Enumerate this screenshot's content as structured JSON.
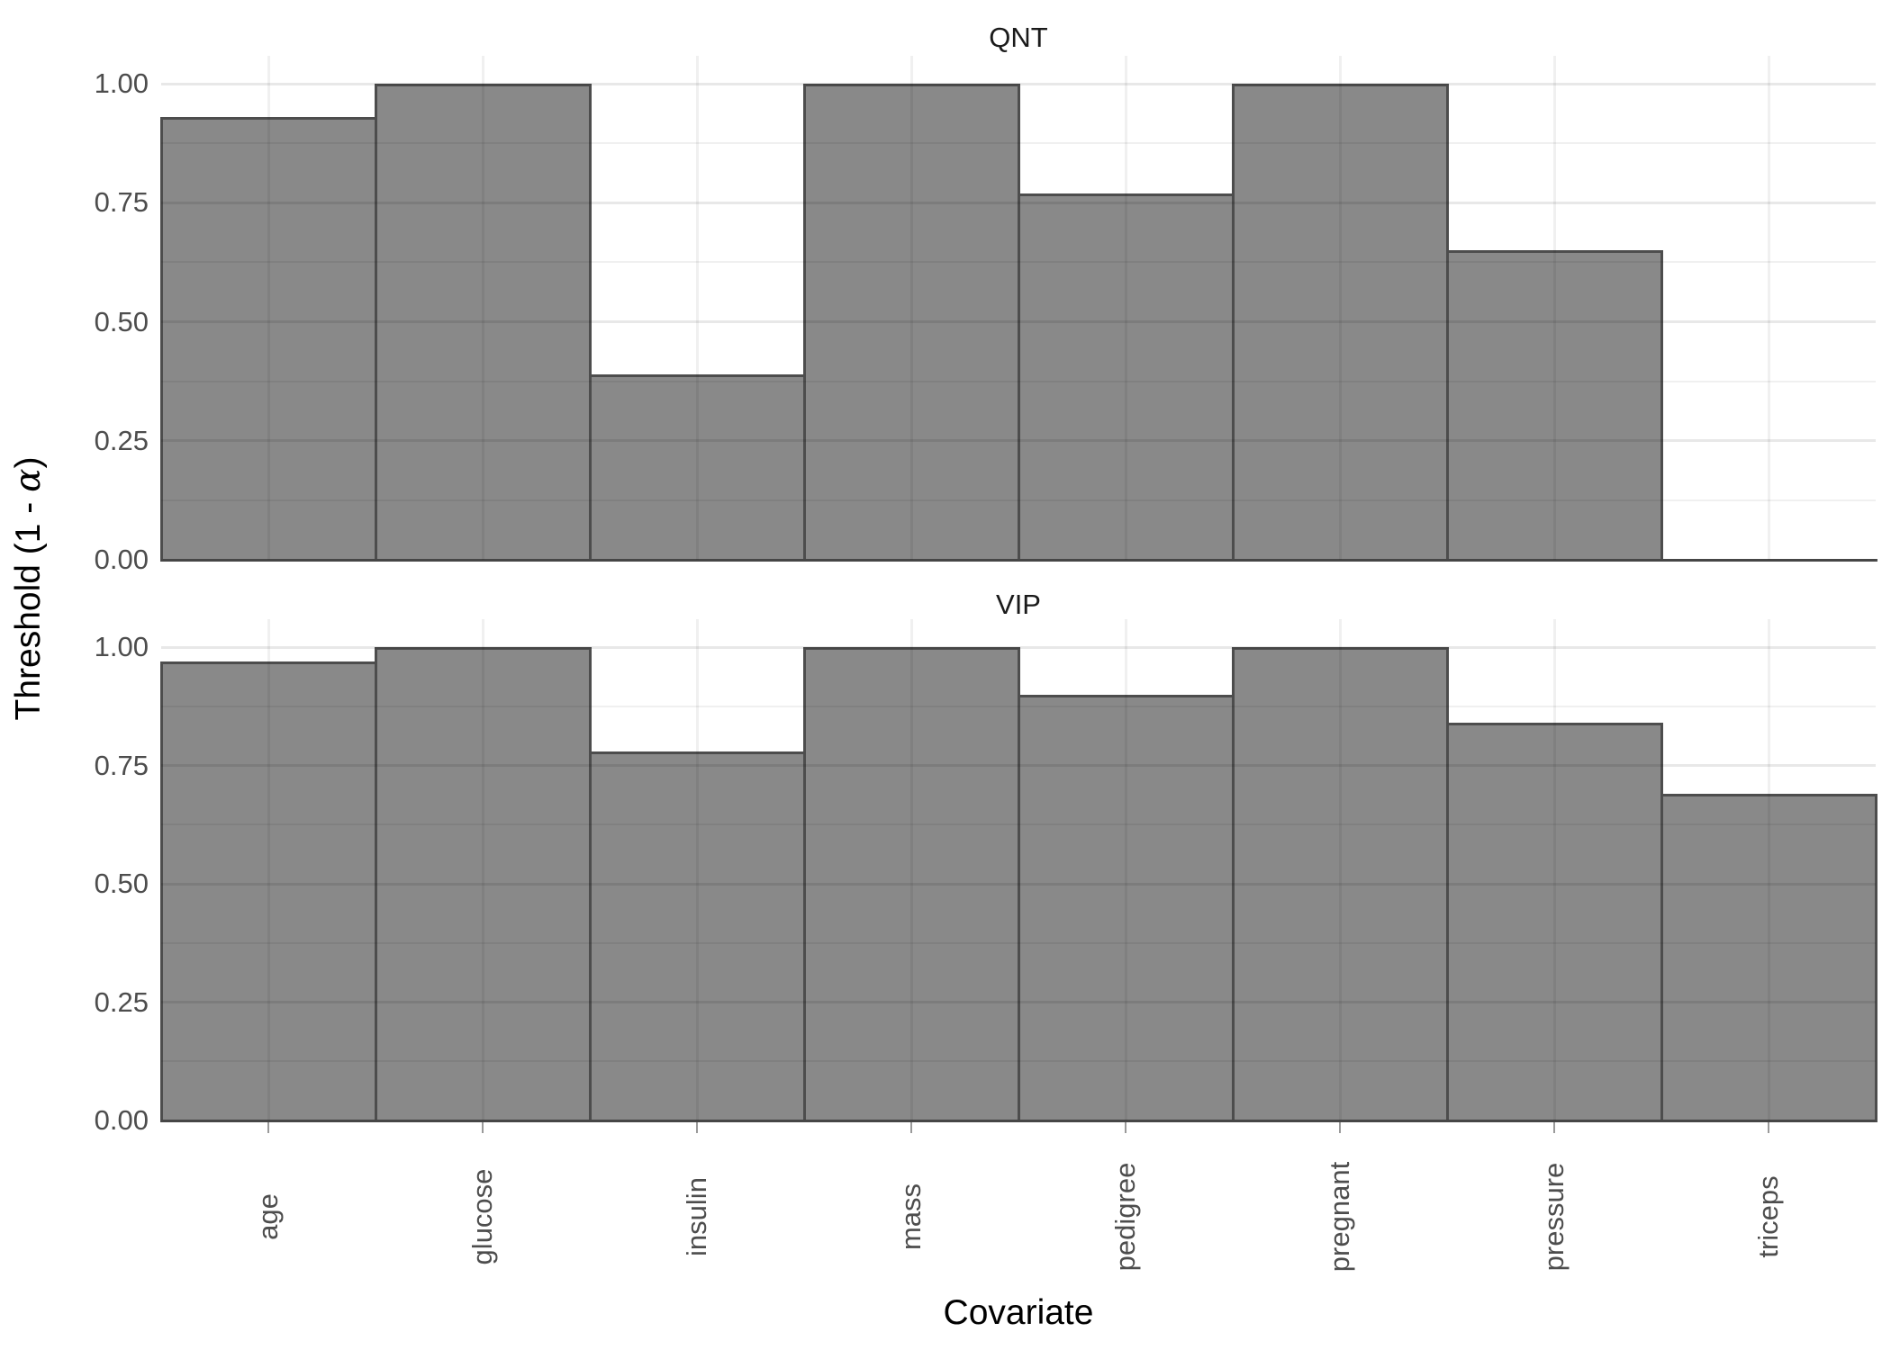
{
  "chart_data": {
    "type": "bar",
    "facet_layout": "rows",
    "categories": [
      "age",
      "glucose",
      "insulin",
      "mass",
      "pedigree",
      "pregnant",
      "pressure",
      "triceps"
    ],
    "series": [
      {
        "name": "QNT",
        "values": [
          0.93,
          1.0,
          0.39,
          1.0,
          0.77,
          1.0,
          0.65,
          0.0
        ]
      },
      {
        "name": "VIP",
        "values": [
          0.97,
          1.0,
          0.78,
          1.0,
          0.9,
          1.0,
          0.84,
          0.69
        ]
      }
    ],
    "title": "",
    "xlabel": "Covariate",
    "ylabel": "Threshold (1 - α)",
    "ylim": [
      0,
      1
    ],
    "y_ticks": [
      0,
      0.25,
      0.5,
      0.75,
      1.0
    ],
    "y_tick_labels": [
      "0.00",
      "0.25",
      "0.50",
      "0.75",
      "1.00"
    ],
    "legend": "none",
    "grid": {
      "horizontal_major": true,
      "horizontal_minor": true,
      "vertical_major_at_category_centers": true,
      "grid_drawn_over_bars": true
    },
    "colors": {
      "bar_fill": "#898989",
      "bar_border": "#4d4d4d",
      "grid_major": "rgba(0,0,0,0.09)",
      "grid_minor": "rgba(0,0,0,0.06)",
      "tick_label": "#4d4d4d",
      "axis_title": "#000000",
      "facet_title": "#1a1a1a",
      "x_tick_mark": "#9a9a9a"
    }
  },
  "y_axis_title_parts": {
    "prefix": "Threshold (1 - ",
    "alpha": "α",
    "suffix": ")"
  }
}
